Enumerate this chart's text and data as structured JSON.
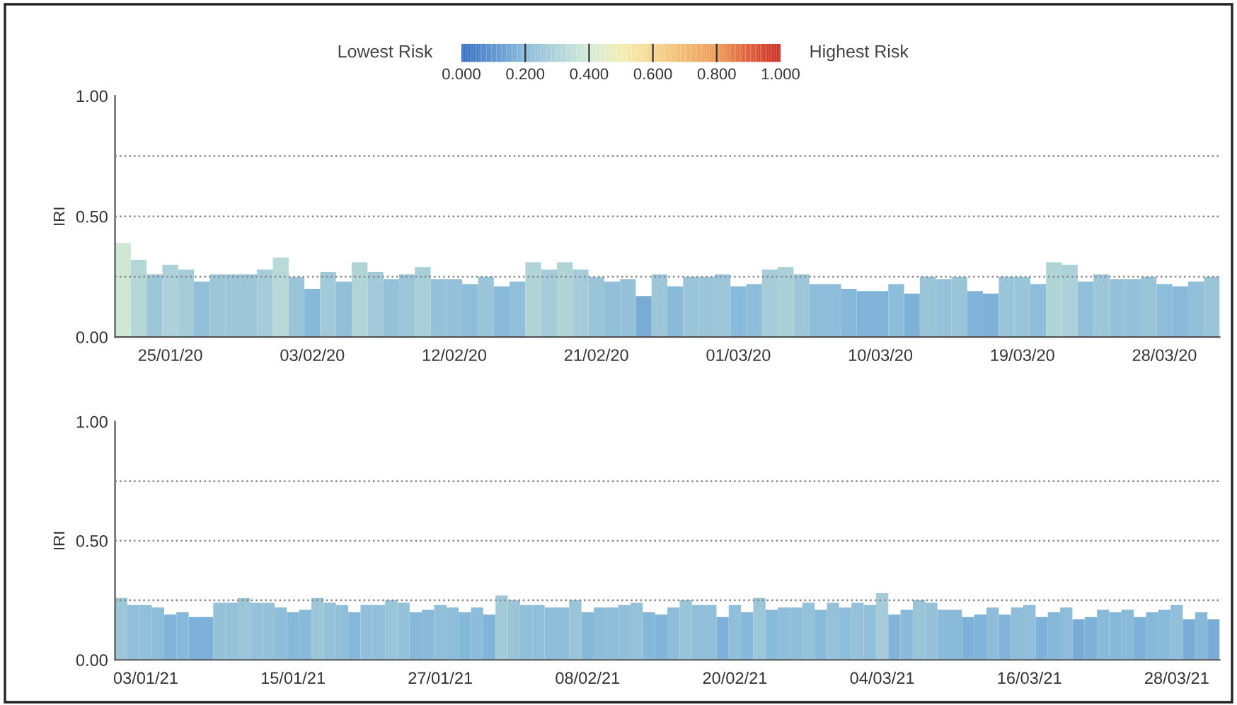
{
  "chart_data": [
    {
      "type": "bar",
      "ylabel": "IRI",
      "ylim": [
        0,
        1
      ],
      "yticks": [
        {
          "value": 0,
          "label": "0.00"
        },
        {
          "value": 0.5,
          "label": "0.50"
        },
        {
          "value": 1,
          "label": "1.00"
        }
      ],
      "grid": false,
      "clim": [
        0,
        1
      ],
      "cticks": [
        {
          "value": 0,
          "label": "0.000"
        },
        {
          "value": 0.2,
          "label": "0.200"
        },
        {
          "value": 0.4,
          "label": "0.400"
        },
        {
          "value": 0.6,
          "label": "0.600"
        },
        {
          "value": 0.8,
          "label": "0.800"
        },
        {
          "value": 1,
          "label": "1.000"
        }
      ],
      "annotations": [
        "Lowest Risk",
        "Highest Risk"
      ],
      "ref_lines": [
        {
          "axis": "y",
          "value": 0.25,
          "line_style": "dotted",
          "color": "#888888"
        },
        {
          "axis": "y",
          "value": 0.5,
          "line_style": "dotted",
          "color": "#888888"
        },
        {
          "axis": "y",
          "value": 0.75,
          "line_style": "dotted",
          "color": "#888888"
        }
      ],
      "categories": [
        null,
        null,
        null,
        "25/01/20",
        null,
        null,
        null,
        null,
        null,
        null,
        null,
        null,
        "03/02/20",
        null,
        null,
        null,
        null,
        null,
        null,
        null,
        null,
        "12/02/20",
        null,
        null,
        null,
        null,
        null,
        null,
        null,
        null,
        "21/02/20",
        null,
        null,
        null,
        null,
        null,
        null,
        null,
        null,
        "01/03/20",
        null,
        null,
        null,
        null,
        null,
        null,
        null,
        null,
        "10/03/20",
        null,
        null,
        null,
        null,
        null,
        null,
        null,
        null,
        "19/03/20",
        null,
        null,
        null,
        null,
        null,
        null,
        null,
        null,
        "28/03/20",
        null,
        null,
        null
      ],
      "values": [
        0.39,
        0.32,
        0.26,
        0.3,
        0.28,
        0.23,
        0.26,
        0.26,
        0.26,
        0.28,
        0.33,
        0.25,
        0.2,
        0.27,
        0.23,
        0.31,
        0.27,
        0.24,
        0.26,
        0.29,
        0.24,
        0.24,
        0.22,
        0.25,
        0.21,
        0.23,
        0.31,
        0.28,
        0.31,
        0.28,
        0.25,
        0.23,
        0.24,
        0.17,
        0.26,
        0.21,
        0.25,
        0.25,
        0.26,
        0.21,
        0.22,
        0.28,
        0.29,
        0.26,
        0.22,
        0.22,
        0.2,
        0.19,
        0.19,
        0.22,
        0.18,
        0.25,
        0.24,
        0.25,
        0.19,
        0.18,
        0.25,
        0.25,
        0.22,
        0.31,
        0.3,
        0.23,
        0.26,
        0.24,
        0.24,
        0.25,
        0.22,
        0.21,
        0.23,
        0.25
      ]
    },
    {
      "type": "bar",
      "ylabel": "IRI",
      "ylim": [
        0,
        1
      ],
      "yticks": [
        {
          "value": 0,
          "label": "0.00"
        },
        {
          "value": 0.5,
          "label": "0.50"
        },
        {
          "value": 1,
          "label": "1.00"
        }
      ],
      "grid": false,
      "ref_lines": [
        {
          "axis": "y",
          "value": 0.25,
          "line_style": "dotted",
          "color": "#888888"
        },
        {
          "axis": "y",
          "value": 0.5,
          "line_style": "dotted",
          "color": "#888888"
        },
        {
          "axis": "y",
          "value": 0.75,
          "line_style": "dotted",
          "color": "#888888"
        }
      ],
      "categories": [
        null,
        null,
        "03/01/21",
        null,
        null,
        null,
        null,
        null,
        null,
        null,
        null,
        null,
        null,
        null,
        "15/01/21",
        null,
        null,
        null,
        null,
        null,
        null,
        null,
        null,
        null,
        null,
        null,
        "27/01/21",
        null,
        null,
        null,
        null,
        null,
        null,
        null,
        null,
        null,
        null,
        null,
        "08/02/21",
        null,
        null,
        null,
        null,
        null,
        null,
        null,
        null,
        null,
        null,
        null,
        "20/02/21",
        null,
        null,
        null,
        null,
        null,
        null,
        null,
        null,
        null,
        null,
        null,
        "04/03/21",
        null,
        null,
        null,
        null,
        null,
        null,
        null,
        null,
        null,
        null,
        null,
        "16/03/21",
        null,
        null,
        null,
        null,
        null,
        null,
        null,
        null,
        null,
        null,
        null,
        "28/03/21",
        null,
        null,
        null
      ],
      "values": [
        0.26,
        0.23,
        0.23,
        0.22,
        0.19,
        0.2,
        0.18,
        0.18,
        0.24,
        0.24,
        0.26,
        0.24,
        0.24,
        0.22,
        0.2,
        0.21,
        0.26,
        0.24,
        0.23,
        0.2,
        0.23,
        0.23,
        0.25,
        0.24,
        0.2,
        0.21,
        0.23,
        0.22,
        0.2,
        0.22,
        0.19,
        0.27,
        0.25,
        0.23,
        0.23,
        0.22,
        0.22,
        0.25,
        0.2,
        0.22,
        0.22,
        0.23,
        0.24,
        0.2,
        0.19,
        0.22,
        0.25,
        0.23,
        0.23,
        0.18,
        0.23,
        0.2,
        0.26,
        0.21,
        0.22,
        0.22,
        0.24,
        0.21,
        0.24,
        0.22,
        0.24,
        0.23,
        0.28,
        0.19,
        0.21,
        0.25,
        0.24,
        0.21,
        0.21,
        0.18,
        0.19,
        0.22,
        0.19,
        0.22,
        0.23,
        0.18,
        0.2,
        0.22,
        0.17,
        0.18,
        0.21,
        0.2,
        0.21,
        0.18,
        0.2,
        0.21,
        0.23,
        0.17,
        0.2,
        0.17
      ]
    }
  ]
}
